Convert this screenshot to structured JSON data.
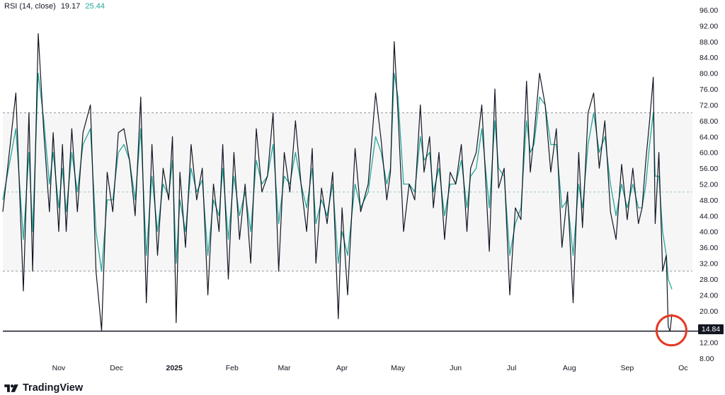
{
  "legend": {
    "indicator": "RSI (14, close)",
    "rsi_value": "19.17",
    "ma_value": "25.44"
  },
  "brand": {
    "name": "TradingView"
  },
  "current_badge": {
    "value": "14.84"
  },
  "colors": {
    "rsi_line": "#131722",
    "ma_line": "#26a69a",
    "band_fill": "#f6f6f7",
    "highlight_circle": "#e53823"
  },
  "chart_data": {
    "type": "line",
    "title": "",
    "xlabel": "",
    "ylabel": "",
    "ylim": [
      8,
      96
    ],
    "y_ticks": [
      "96.00",
      "92.00",
      "88.00",
      "84.00",
      "80.00",
      "76.00",
      "72.00",
      "68.00",
      "64.00",
      "60.00",
      "56.00",
      "52.00",
      "48.00",
      "44.00",
      "40.00",
      "36.00",
      "32.00",
      "28.00",
      "24.00",
      "20.00",
      "16.00",
      "12.00",
      "8.00"
    ],
    "x_labels": [
      {
        "label": "Nov",
        "x": 30
      },
      {
        "label": "Dec",
        "x": 61
      },
      {
        "label": "2025",
        "x": 92,
        "bold": true
      },
      {
        "label": "Feb",
        "x": 123
      },
      {
        "label": "Mar",
        "x": 151
      },
      {
        "label": "Apr",
        "x": 182
      },
      {
        "label": "May",
        "x": 212
      },
      {
        "label": "Jun",
        "x": 243
      },
      {
        "label": "Jul",
        "x": 273
      },
      {
        "label": "Aug",
        "x": 304
      },
      {
        "label": "Sep",
        "x": 335
      },
      {
        "label": "Oc",
        "x": 365
      }
    ],
    "x_range": [
      0,
      370
    ],
    "bands": {
      "overbought": 70,
      "middle": 50,
      "oversold": 30
    },
    "support_level": 14.84,
    "series": [
      {
        "name": "RSI",
        "color": "#131722",
        "x": [
          0,
          7,
          11,
          14,
          16,
          19,
          22,
          25,
          27,
          30,
          32,
          34,
          37,
          40,
          43,
          47,
          50,
          53,
          56,
          59,
          62,
          65,
          68,
          71,
          74,
          77,
          80,
          83,
          86,
          89,
          91,
          93,
          95,
          98,
          101,
          104,
          107,
          110,
          113,
          116,
          118,
          121,
          124,
          127,
          130,
          133,
          136,
          139,
          142,
          145,
          148,
          151,
          154,
          157,
          160,
          163,
          166,
          168,
          171,
          174,
          177,
          180,
          182,
          185,
          189,
          192,
          196,
          200,
          203,
          206,
          208,
          210,
          212,
          215,
          218,
          221,
          224,
          226,
          229,
          231,
          234,
          237,
          240,
          243,
          246,
          249,
          251,
          254,
          257,
          261,
          264,
          266,
          269,
          272,
          275,
          278,
          281,
          283,
          285,
          288,
          291,
          294,
          297,
          300,
          303,
          306,
          309,
          311,
          314,
          317,
          320,
          323,
          326,
          329,
          332,
          335,
          338,
          341,
          343,
          345,
          347,
          349,
          350,
          352,
          354,
          356,
          357,
          358,
          359
        ],
        "values": [
          45,
          75,
          25,
          70,
          30,
          90,
          65,
          45,
          65,
          40,
          62,
          40,
          66,
          45,
          65,
          72,
          30,
          15,
          55,
          45,
          65,
          66,
          58,
          44,
          74,
          22,
          62,
          34,
          56,
          48,
          64,
          17,
          55,
          36,
          62,
          48,
          56,
          24,
          52,
          40,
          62,
          28,
          60,
          38,
          52,
          32,
          66,
          50,
          54,
          70,
          30,
          60,
          50,
          68,
          52,
          40,
          61,
          32,
          51,
          42,
          55,
          18,
          46,
          24,
          61,
          45,
          52,
          75,
          63,
          48,
          55,
          88,
          70,
          40,
          52,
          48,
          72,
          55,
          64,
          46,
          60,
          38,
          55,
          52,
          62,
          40,
          56,
          60,
          72,
          35,
          76,
          51,
          56,
          24,
          46,
          43,
          78,
          55,
          64,
          80,
          72,
          55,
          66,
          36,
          50,
          22,
          60,
          41,
          70,
          75,
          56,
          68,
          45,
          38,
          57,
          43,
          56,
          42,
          46,
          58,
          68,
          79,
          42,
          60,
          30,
          34,
          16,
          14.84,
          19.17
        ]
      },
      {
        "name": "MA",
        "color": "#26a69a",
        "x": [
          0,
          7,
          11,
          14,
          16,
          19,
          22,
          25,
          27,
          30,
          32,
          34,
          37,
          40,
          43,
          47,
          50,
          53,
          56,
          59,
          62,
          65,
          68,
          71,
          74,
          77,
          80,
          83,
          86,
          89,
          91,
          93,
          95,
          98,
          101,
          104,
          107,
          110,
          113,
          116,
          118,
          121,
          124,
          127,
          130,
          133,
          136,
          139,
          142,
          145,
          148,
          151,
          154,
          157,
          160,
          163,
          166,
          168,
          171,
          174,
          177,
          180,
          182,
          185,
          189,
          192,
          196,
          200,
          203,
          206,
          208,
          210,
          212,
          215,
          218,
          221,
          224,
          226,
          229,
          231,
          234,
          237,
          240,
          243,
          246,
          249,
          251,
          254,
          257,
          261,
          264,
          266,
          269,
          272,
          275,
          278,
          281,
          283,
          285,
          288,
          291,
          294,
          297,
          300,
          303,
          306,
          309,
          311,
          314,
          317,
          320,
          323,
          326,
          329,
          332,
          335,
          338,
          341,
          343,
          345,
          347,
          349,
          350,
          352,
          354,
          356,
          357,
          359
        ],
        "values": [
          48,
          66,
          38,
          60,
          40,
          80,
          68,
          52,
          60,
          46,
          56,
          45,
          60,
          50,
          62,
          66,
          40,
          30,
          48,
          48,
          60,
          62,
          58,
          48,
          66,
          34,
          54,
          40,
          52,
          49,
          58,
          32,
          48,
          40,
          56,
          50,
          53,
          34,
          48,
          44,
          56,
          38,
          54,
          44,
          50,
          40,
          58,
          52,
          54,
          62,
          42,
          54,
          52,
          60,
          52,
          46,
          56,
          42,
          48,
          44,
          52,
          32,
          40,
          34,
          52,
          46,
          50,
          64,
          60,
          52,
          56,
          80,
          74,
          52,
          52,
          50,
          64,
          58,
          60,
          50,
          56,
          44,
          52,
          52,
          58,
          46,
          54,
          56,
          66,
          46,
          68,
          56,
          54,
          34,
          42,
          46,
          68,
          60,
          62,
          74,
          72,
          62,
          62,
          46,
          48,
          34,
          52,
          46,
          62,
          70,
          60,
          64,
          52,
          44,
          52,
          46,
          52,
          46,
          46,
          52,
          62,
          70,
          54,
          54,
          40,
          34,
          28,
          25.44
        ]
      }
    ]
  }
}
